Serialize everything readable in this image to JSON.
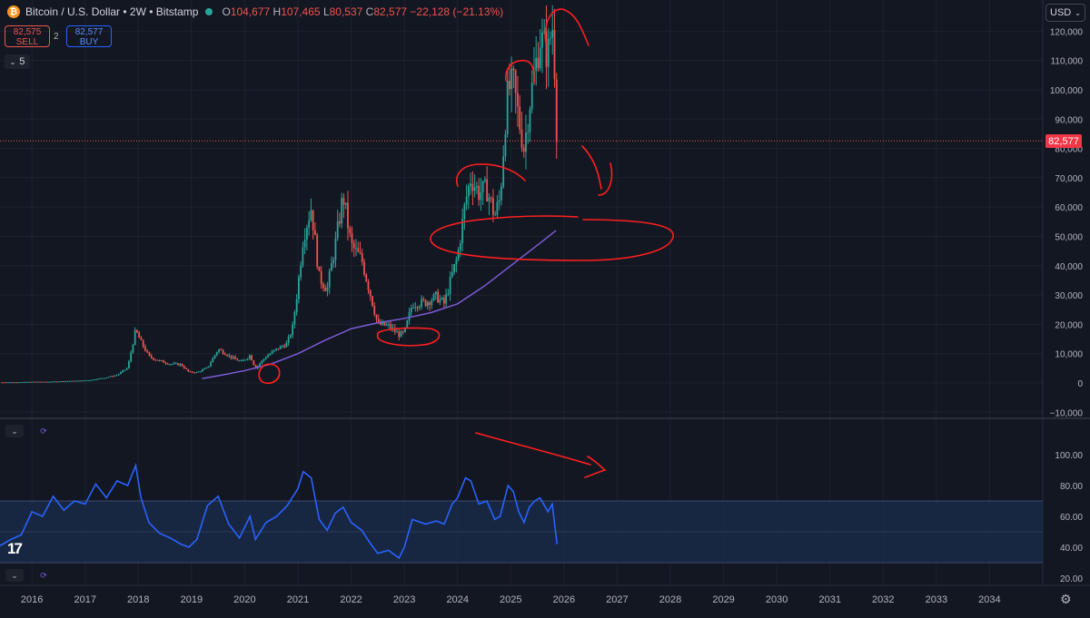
{
  "header": {
    "symbol": "Bitcoin / U.S. Dollar • 2W • Bitstamp",
    "coin_glyph": "₿",
    "open_label": "O",
    "open": "104,677",
    "high_label": "H",
    "high": "107,465",
    "low_label": "L",
    "low": "80,537",
    "close_label": "C",
    "close": "82,577",
    "change": "−22,128 (−21.13%)"
  },
  "trade": {
    "sell_price": "82,575",
    "sell_label": "SELL",
    "spread": "2",
    "buy_price": "82,577",
    "buy_label": "BUY"
  },
  "indicator_toggle": {
    "icon": "chevron-down-icon",
    "count": "5"
  },
  "currency": {
    "label": "USD",
    "icon": "chevron-down-icon"
  },
  "last_price_tag": "82,577",
  "colors": {
    "background": "#131722",
    "grid": "#1e222d",
    "up": "#26a69a",
    "down": "#ef5350",
    "ma": "#7b5bd6",
    "rsi": "#2962ff",
    "rsi_band": "#1a2a47",
    "annotation": "#ff1f1f"
  },
  "chart_data": [
    {
      "type": "candlestick",
      "title": "Bitcoin / U.S. Dollar • 2W • Bitstamp",
      "x_ticks": [
        "2016",
        "2017",
        "2018",
        "2019",
        "2020",
        "2021",
        "2022",
        "2023",
        "2024",
        "2025",
        "2026",
        "2027",
        "2028",
        "2029",
        "2030",
        "2031",
        "2032",
        "2033",
        "2034"
      ],
      "xlim": [
        2015.4,
        2035.0
      ],
      "y_ticks": [
        "120,000",
        "110,000",
        "100,000",
        "90,000",
        "80,000",
        "70,000",
        "60,000",
        "50,000",
        "40,000",
        "30,000",
        "20,000",
        "10,000",
        "0",
        "−10,000"
      ],
      "ylim": [
        -10000,
        122000
      ],
      "last_price": 82577,
      "series": [
        {
          "name": "BTCUSD",
          "points": [
            [
              2015.4,
              250
            ],
            [
              2015.7,
              250
            ],
            [
              2016.0,
              430
            ],
            [
              2016.3,
              430
            ],
            [
              2016.6,
              620
            ],
            [
              2016.9,
              780
            ],
            [
              2017.1,
              1000
            ],
            [
              2017.4,
              1900
            ],
            [
              2017.6,
              2700
            ],
            [
              2017.8,
              5200
            ],
            [
              2017.95,
              18000
            ],
            [
              2018.05,
              14000
            ],
            [
              2018.2,
              9000
            ],
            [
              2018.4,
              7500
            ],
            [
              2018.6,
              6500
            ],
            [
              2018.8,
              6300
            ],
            [
              2018.95,
              3700
            ],
            [
              2019.1,
              3600
            ],
            [
              2019.3,
              5200
            ],
            [
              2019.5,
              11500
            ],
            [
              2019.6,
              10500
            ],
            [
              2019.8,
              8200
            ],
            [
              2019.95,
              7200
            ],
            [
              2020.1,
              9500
            ],
            [
              2020.2,
              5000
            ],
            [
              2020.4,
              9000
            ],
            [
              2020.6,
              11500
            ],
            [
              2020.8,
              13500
            ],
            [
              2020.9,
              19000
            ],
            [
              2021.0,
              33000
            ],
            [
              2021.1,
              50000
            ],
            [
              2021.25,
              60000
            ],
            [
              2021.4,
              36000
            ],
            [
              2021.55,
              32000
            ],
            [
              2021.7,
              47000
            ],
            [
              2021.85,
              64000
            ],
            [
              2022.0,
              47000
            ],
            [
              2022.2,
              42000
            ],
            [
              2022.35,
              31000
            ],
            [
              2022.5,
              20000
            ],
            [
              2022.7,
              19500
            ],
            [
              2022.9,
              16500
            ],
            [
              2023.0,
              17000
            ],
            [
              2023.15,
              27000
            ],
            [
              2023.4,
              27500
            ],
            [
              2023.6,
              29500
            ],
            [
              2023.75,
              27000
            ],
            [
              2023.9,
              37000
            ],
            [
              2024.0,
              43000
            ],
            [
              2024.15,
              62000
            ],
            [
              2024.25,
              70000
            ],
            [
              2024.4,
              65000
            ],
            [
              2024.55,
              66000
            ],
            [
              2024.7,
              57000
            ],
            [
              2024.8,
              63000
            ],
            [
              2024.9,
              90000
            ],
            [
              2024.95,
              100000
            ],
            [
              2025.05,
              102000
            ],
            [
              2025.15,
              90000
            ],
            [
              2025.25,
              80000
            ],
            [
              2025.35,
              95000
            ],
            [
              2025.45,
              106000
            ],
            [
              2025.55,
              118000
            ],
            [
              2025.7,
              112000
            ],
            [
              2025.78,
              123000
            ],
            [
              2025.82,
              110000
            ],
            [
              2025.87,
              82577
            ]
          ]
        },
        {
          "name": "MA",
          "points": [
            [
              2019.2,
              1500
            ],
            [
              2019.6,
              2800
            ],
            [
              2020.0,
              4200
            ],
            [
              2020.5,
              6500
            ],
            [
              2021.0,
              10000
            ],
            [
              2021.5,
              14500
            ],
            [
              2022.0,
              18500
            ],
            [
              2022.5,
              20500
            ],
            [
              2023.0,
              22000
            ],
            [
              2023.5,
              24000
            ],
            [
              2024.0,
              27000
            ],
            [
              2024.5,
              33000
            ],
            [
              2025.0,
              40000
            ],
            [
              2025.5,
              47000
            ],
            [
              2025.85,
              52000
            ]
          ]
        }
      ]
    },
    {
      "type": "line",
      "y_ticks": [
        "100.00",
        "80.00",
        "60.00",
        "40.00",
        "20.00"
      ],
      "ylim": [
        13,
        100
      ],
      "band": [
        30,
        70
      ],
      "midline": 50,
      "series": [
        {
          "name": "RSI",
          "points": [
            [
              2015.4,
              41
            ],
            [
              2015.6,
              45
            ],
            [
              2015.8,
              48
            ],
            [
              2016.0,
              63
            ],
            [
              2016.2,
              60
            ],
            [
              2016.4,
              73
            ],
            [
              2016.6,
              64
            ],
            [
              2016.8,
              70
            ],
            [
              2017.0,
              68
            ],
            [
              2017.2,
              81
            ],
            [
              2017.4,
              72
            ],
            [
              2017.6,
              83
            ],
            [
              2017.8,
              80
            ],
            [
              2017.95,
              93
            ],
            [
              2018.05,
              72
            ],
            [
              2018.2,
              56
            ],
            [
              2018.4,
              49
            ],
            [
              2018.6,
              46
            ],
            [
              2018.8,
              42
            ],
            [
              2018.95,
              40
            ],
            [
              2019.1,
              45
            ],
            [
              2019.3,
              67
            ],
            [
              2019.5,
              73
            ],
            [
              2019.7,
              55
            ],
            [
              2019.9,
              46
            ],
            [
              2020.1,
              60
            ],
            [
              2020.2,
              45
            ],
            [
              2020.4,
              56
            ],
            [
              2020.6,
              60
            ],
            [
              2020.8,
              67
            ],
            [
              2021.0,
              78
            ],
            [
              2021.1,
              89
            ],
            [
              2021.25,
              85
            ],
            [
              2021.4,
              58
            ],
            [
              2021.55,
              51
            ],
            [
              2021.7,
              62
            ],
            [
              2021.85,
              66
            ],
            [
              2022.0,
              56
            ],
            [
              2022.2,
              51
            ],
            [
              2022.35,
              43
            ],
            [
              2022.5,
              36
            ],
            [
              2022.7,
              38
            ],
            [
              2022.9,
              33
            ],
            [
              2023.0,
              40
            ],
            [
              2023.15,
              58
            ],
            [
              2023.4,
              55
            ],
            [
              2023.6,
              57
            ],
            [
              2023.75,
              55
            ],
            [
              2023.9,
              68
            ],
            [
              2024.0,
              72
            ],
            [
              2024.15,
              85
            ],
            [
              2024.25,
              83
            ],
            [
              2024.4,
              68
            ],
            [
              2024.55,
              70
            ],
            [
              2024.7,
              58
            ],
            [
              2024.8,
              60
            ],
            [
              2024.95,
              80
            ],
            [
              2025.05,
              76
            ],
            [
              2025.15,
              63
            ],
            [
              2025.25,
              56
            ],
            [
              2025.35,
              66
            ],
            [
              2025.45,
              70
            ],
            [
              2025.55,
              72
            ],
            [
              2025.7,
              63
            ],
            [
              2025.78,
              68
            ],
            [
              2025.87,
              42
            ]
          ]
        }
      ]
    }
  ]
}
